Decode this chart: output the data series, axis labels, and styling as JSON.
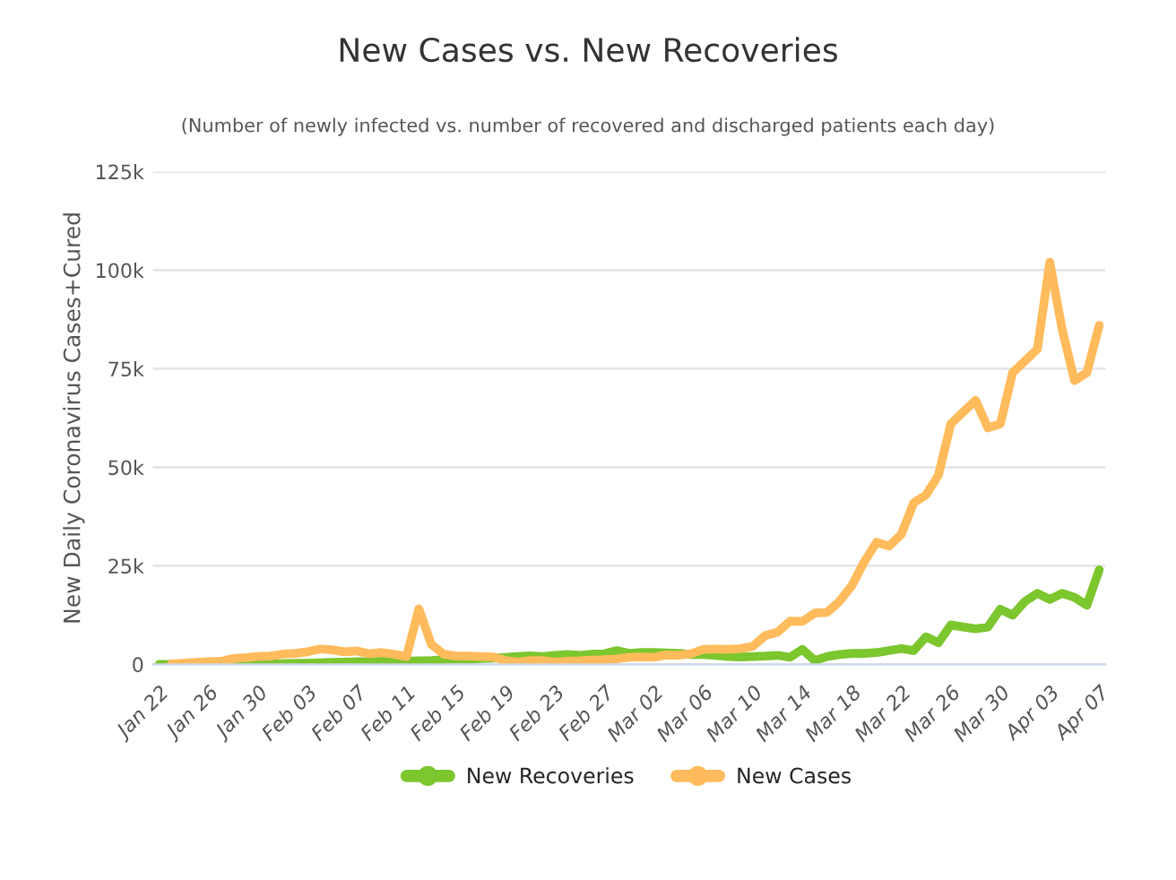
{
  "chart_data": {
    "type": "line",
    "title": "New Cases vs. New Recoveries",
    "subtitle": "(Number of newly infected vs. number of recovered and discharged patients each day)",
    "ylabel": "New Daily Coronavirus Cases+Cured",
    "categories": [
      "Jan 22",
      null,
      null,
      null,
      "Jan 26",
      null,
      null,
      null,
      "Jan 30",
      null,
      null,
      null,
      "Feb 03",
      null,
      null,
      null,
      "Feb 07",
      null,
      null,
      null,
      "Feb 11",
      null,
      null,
      null,
      "Feb 15",
      null,
      null,
      null,
      "Feb 19",
      null,
      null,
      null,
      "Feb 23",
      null,
      null,
      null,
      "Feb 27",
      null,
      null,
      null,
      "Mar 02",
      null,
      null,
      null,
      "Mar 06",
      null,
      null,
      null,
      "Mar 10",
      null,
      null,
      null,
      "Mar 14",
      null,
      null,
      null,
      "Mar 18",
      null,
      null,
      null,
      "Mar 22",
      null,
      null,
      null,
      "Mar 26",
      null,
      null,
      null,
      "Mar 30",
      null,
      null,
      null,
      "Apr 03",
      null,
      null,
      null,
      "Apr 07"
    ],
    "series": [
      {
        "name": "New Recoveries",
        "color": "#7cc62e",
        "values": [
          0,
          0,
          100,
          0,
          100,
          0,
          100,
          100,
          200,
          100,
          200,
          300,
          300,
          400,
          500,
          600,
          700,
          700,
          800,
          700,
          800,
          900,
          1000,
          1200,
          1300,
          1300,
          1500,
          1600,
          1800,
          2000,
          2200,
          2000,
          2300,
          2500,
          2300,
          2600,
          2700,
          3500,
          2800,
          3000,
          3000,
          2900,
          2800,
          2500,
          2500,
          2300,
          2000,
          1900,
          2000,
          2100,
          2300,
          1800,
          3800,
          1000,
          2000,
          2500,
          2800,
          2800,
          3000,
          3500,
          4000,
          3500,
          7000,
          5500,
          10000,
          9500,
          9000,
          9500,
          14000,
          12500,
          16000,
          18000,
          16500,
          18000,
          17000,
          15000,
          24000
        ]
      },
      {
        "name": "New Cases",
        "color": "#ffbb5c",
        "values": [
          null,
          100,
          300,
          500,
          700,
          800,
          1500,
          1700,
          2000,
          2100,
          2600,
          2800,
          3200,
          3900,
          3700,
          3200,
          3400,
          2700,
          3000,
          2600,
          2000,
          14100,
          5100,
          2600,
          2100,
          2100,
          2000,
          1900,
          1000,
          600,
          1000,
          1000,
          600,
          800,
          900,
          1100,
          1200,
          1400,
          1800,
          1900,
          1800,
          2400,
          2300,
          2700,
          3800,
          3900,
          3800,
          4000,
          4600,
          7300,
          8200,
          11000,
          10900,
          13000,
          13200,
          16000,
          20000,
          26000,
          31000,
          30000,
          33000,
          41000,
          43000,
          48000,
          61000,
          64000,
          67000,
          60000,
          61000,
          74000,
          77000,
          80000,
          102000,
          85000,
          72000,
          74000,
          86000
        ]
      }
    ],
    "ylim": [
      0,
      125000
    ],
    "yticks": [
      {
        "value": 0,
        "label": "0"
      },
      {
        "value": 25000,
        "label": "25k"
      },
      {
        "value": 50000,
        "label": "50k"
      },
      {
        "value": 75000,
        "label": "75k"
      },
      {
        "value": 100000,
        "label": "100k"
      },
      {
        "value": 125000,
        "label": "125k"
      }
    ],
    "grid": "y",
    "legend": "bottom",
    "marker": "none",
    "line_style": "solid"
  }
}
